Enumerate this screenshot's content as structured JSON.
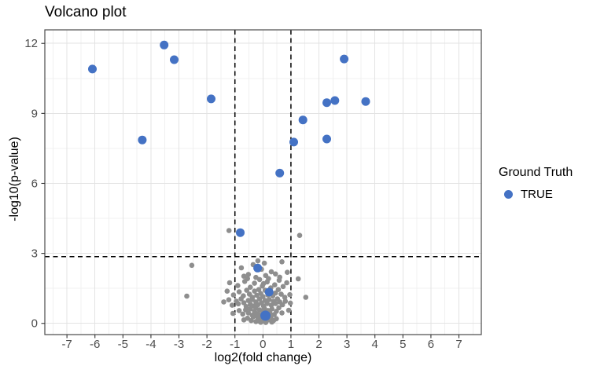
{
  "chart_data": {
    "type": "scatter",
    "title": "Volcano plot",
    "xlabel": "log2(fold change)",
    "ylabel": "-log10(p-value)",
    "xlim": [
      -7.79,
      7.8
    ],
    "ylim": [
      -0.48,
      12.58
    ],
    "x_ticks": [
      -7,
      -6,
      -5,
      -4,
      -3,
      -2,
      -1,
      0,
      1,
      2,
      3,
      4,
      5,
      6,
      7
    ],
    "y_ticks": [
      0,
      3,
      6,
      9,
      12
    ],
    "x_minor": [
      -7.5,
      -6.5,
      -5.5,
      -4.5,
      -3.5,
      -2.5,
      -1.5,
      -0.5,
      0.5,
      1.5,
      2.5,
      3.5,
      4.5,
      5.5,
      6.5,
      7.5
    ],
    "y_minor": [
      1.5,
      4.5,
      7.5,
      10.5
    ],
    "grid": true,
    "vlines": [
      {
        "x": -1,
        "style": "dashed"
      },
      {
        "x": 1,
        "style": "dashed"
      }
    ],
    "hlines": [
      {
        "y": 2.86,
        "style": "dashed"
      }
    ],
    "legend": {
      "title": "Ground Truth",
      "position": "right",
      "entries": [
        {
          "label": "TRUE",
          "color": "#4472C4"
        }
      ]
    },
    "colors": {
      "point_true": "#4472C4",
      "point_other": "#8E8E8E",
      "grid_major": "#E3E3E3",
      "grid_minor": "#F0F0F0",
      "panel_border": "#4A4A4A",
      "threshold_line": "#000000",
      "tick": "#333333",
      "tick_label": "#4D4D4D"
    },
    "series": [
      {
        "name": "other",
        "color": "#8E8E8E",
        "size": 3.3,
        "above_lines": false,
        "points": [
          [
            -2.54,
            2.49
          ],
          [
            -2.72,
            1.17
          ],
          [
            -1.21,
            3.98
          ],
          [
            1.31,
            3.77
          ],
          [
            1.26,
            1.91
          ],
          [
            1.53,
            1.12
          ],
          [
            0.96,
            1.23
          ],
          [
            0.98,
            0.87
          ],
          [
            0.87,
            2.19
          ],
          [
            0.92,
            0.56
          ],
          [
            0.68,
            2.64
          ],
          [
            0.57,
            0.67
          ],
          [
            -1.4,
            0.92
          ],
          [
            -1.28,
            1.38
          ],
          [
            -1.19,
            1.74
          ],
          [
            -1.22,
            1.01
          ],
          [
            -1.07,
            0.43
          ],
          [
            -0.88,
            0.84
          ],
          [
            -0.77,
            2.38
          ],
          [
            -0.35,
            2.52
          ],
          [
            -0.18,
            2.68
          ],
          [
            0.05,
            2.58
          ],
          [
            0.3,
            2.21
          ],
          [
            -0.52,
            2.1
          ],
          [
            0.1,
            2.05
          ],
          [
            -0.05,
            2.32
          ],
          [
            0.45,
            2.12
          ],
          [
            -0.25,
            1.97
          ],
          [
            0.6,
            1.98
          ],
          [
            -0.68,
            2.02
          ],
          [
            -0.9,
            1.62
          ],
          [
            -0.65,
            1.8
          ],
          [
            -0.45,
            1.55
          ],
          [
            -0.3,
            1.72
          ],
          [
            -0.12,
            1.88
          ],
          [
            -0.02,
            1.6
          ],
          [
            0.15,
            1.78
          ],
          [
            0.28,
            1.52
          ],
          [
            0.42,
            1.65
          ],
          [
            0.58,
            1.85
          ],
          [
            0.72,
            1.58
          ],
          [
            0.85,
            1.74
          ],
          [
            0.2,
            1.92
          ],
          [
            -0.55,
            1.92
          ],
          [
            0.02,
            1.7
          ],
          [
            -1.05,
            1.22
          ],
          [
            -0.85,
            1.35
          ],
          [
            -0.7,
            1.18
          ],
          [
            -0.58,
            1.42
          ],
          [
            -0.48,
            1.25
          ],
          [
            -0.38,
            1.12
          ],
          [
            -0.3,
            1.38
          ],
          [
            -0.22,
            1.2
          ],
          [
            -0.15,
            1.45
          ],
          [
            -0.08,
            1.28
          ],
          [
            0.0,
            1.15
          ],
          [
            0.08,
            1.42
          ],
          [
            0.18,
            1.22
          ],
          [
            0.25,
            1.35
          ],
          [
            0.35,
            1.18
          ],
          [
            0.45,
            1.3
          ],
          [
            0.55,
            1.45
          ],
          [
            0.65,
            1.25
          ],
          [
            0.78,
            1.12
          ],
          [
            -1.1,
            0.78
          ],
          [
            -0.95,
            0.95
          ],
          [
            -0.78,
            1.05
          ],
          [
            -0.68,
            0.88
          ],
          [
            -0.6,
            0.72
          ],
          [
            -0.52,
            0.98
          ],
          [
            -0.45,
            0.82
          ],
          [
            -0.38,
            1.02
          ],
          [
            -0.32,
            0.75
          ],
          [
            -0.25,
            0.92
          ],
          [
            -0.18,
            0.8
          ],
          [
            -0.12,
            1.05
          ],
          [
            -0.05,
            0.88
          ],
          [
            0.02,
            0.75
          ],
          [
            0.08,
            0.98
          ],
          [
            0.15,
            0.85
          ],
          [
            0.22,
            1.02
          ],
          [
            0.3,
            0.78
          ],
          [
            0.38,
            0.95
          ],
          [
            0.45,
            0.85
          ],
          [
            0.52,
            1.05
          ],
          [
            0.6,
            0.92
          ],
          [
            0.7,
            0.8
          ],
          [
            0.8,
            0.95
          ],
          [
            -0.85,
            0.55
          ],
          [
            -0.72,
            0.4
          ],
          [
            -0.62,
            0.58
          ],
          [
            -0.52,
            0.45
          ],
          [
            -0.45,
            0.62
          ],
          [
            -0.38,
            0.35
          ],
          [
            -0.3,
            0.52
          ],
          [
            -0.25,
            0.65
          ],
          [
            -0.18,
            0.42
          ],
          [
            -0.12,
            0.58
          ],
          [
            -0.05,
            0.35
          ],
          [
            0.0,
            0.5
          ],
          [
            0.05,
            0.65
          ],
          [
            0.12,
            0.4
          ],
          [
            0.18,
            0.55
          ],
          [
            0.25,
            0.45
          ],
          [
            0.32,
            0.62
          ],
          [
            0.4,
            0.38
          ],
          [
            0.48,
            0.52
          ],
          [
            0.68,
            0.45
          ],
          [
            -0.55,
            0.22
          ],
          [
            -0.42,
            0.12
          ],
          [
            -0.35,
            0.28
          ],
          [
            -0.25,
            0.08
          ],
          [
            -0.18,
            0.25
          ],
          [
            -0.1,
            0.15
          ],
          [
            -0.02,
            0.28
          ],
          [
            0.05,
            0.1
          ],
          [
            0.12,
            0.22
          ],
          [
            0.2,
            0.15
          ],
          [
            0.28,
            0.25
          ],
          [
            0.38,
            0.12
          ],
          [
            0.48,
            0.2
          ],
          [
            -0.68,
            0.15
          ],
          [
            0.1,
            0.04
          ],
          [
            -0.08,
            0.05
          ],
          [
            0.32,
            0.06
          ],
          [
            -0.3,
            0.33
          ],
          [
            0.22,
            0.32
          ],
          [
            -0.15,
            0.1
          ]
        ]
      },
      {
        "name": "TRUE",
        "color": "#4472C4",
        "size": 5.5,
        "above_lines": true,
        "points": [
          [
            -6.09,
            10.9
          ],
          [
            -3.53,
            11.93
          ],
          [
            -3.17,
            11.3
          ],
          [
            -4.31,
            7.86
          ],
          [
            -1.85,
            9.62
          ],
          [
            -0.81,
            3.89
          ],
          [
            -0.19,
            2.37
          ],
          [
            0.22,
            1.34
          ],
          [
            0.09,
            0.33,
            6.5
          ],
          [
            0.6,
            6.44
          ],
          [
            1.1,
            7.77
          ],
          [
            1.43,
            8.72
          ],
          [
            2.28,
            9.46
          ],
          [
            2.57,
            9.55
          ],
          [
            2.28,
            7.9
          ],
          [
            2.9,
            11.33
          ],
          [
            3.67,
            9.51
          ]
        ]
      }
    ]
  }
}
